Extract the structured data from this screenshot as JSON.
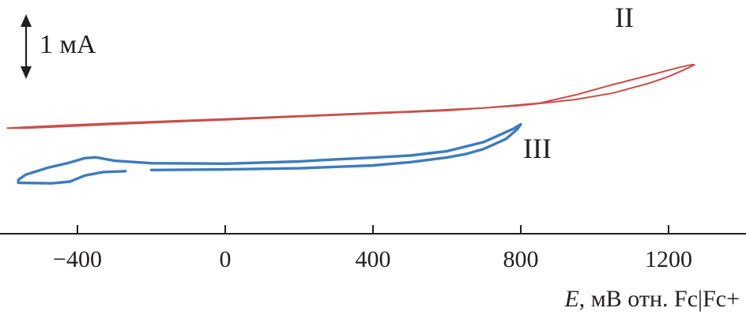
{
  "chart_data": {
    "type": "line",
    "xlabel_symbol": "E",
    "xlabel_rest": ", мВ отн. Fc|Fc+",
    "xlim": [
      -620,
      1400
    ],
    "x_ticks": [
      {
        "value": -400,
        "label": "−400"
      },
      {
        "value": 0,
        "label": "0"
      },
      {
        "value": 400,
        "label": "400"
      },
      {
        "value": 800,
        "label": "800"
      },
      {
        "value": 1200,
        "label": "1200"
      }
    ],
    "scale_bar_label": "1 мА",
    "grid": false,
    "series": [
      {
        "name": "II",
        "color": "#c8504b",
        "closed": true,
        "points": [
          [
            -590,
            6.08
          ],
          [
            -500,
            6.18
          ],
          [
            -300,
            6.37
          ],
          [
            0,
            6.61
          ],
          [
            300,
            6.87
          ],
          [
            500,
            7.04
          ],
          [
            700,
            7.24
          ],
          [
            850,
            7.52
          ],
          [
            950,
            8.0
          ],
          [
            1050,
            8.59
          ],
          [
            1150,
            9.13
          ],
          [
            1230,
            9.58
          ],
          [
            1265,
            9.74
          ],
          [
            1270,
            9.72
          ],
          [
            1240,
            9.42
          ],
          [
            1200,
            9.05
          ],
          [
            1150,
            8.68
          ],
          [
            1050,
            8.1
          ],
          [
            950,
            7.73
          ],
          [
            800,
            7.38
          ],
          [
            600,
            7.09
          ],
          [
            300,
            6.83
          ],
          [
            0,
            6.56
          ],
          [
            -300,
            6.3
          ],
          [
            -480,
            6.13
          ],
          [
            -540,
            6.08
          ]
        ]
      },
      {
        "name": "III",
        "color": "#3f7bbf",
        "closed": false,
        "points": [
          [
            -270,
            3.6
          ],
          [
            -330,
            3.55
          ],
          [
            -380,
            3.35
          ],
          [
            -420,
            3.0
          ],
          [
            -470,
            2.9
          ],
          [
            -560,
            2.93
          ],
          [
            -560,
            3.1
          ],
          [
            -540,
            3.4
          ],
          [
            -480,
            3.8
          ],
          [
            -420,
            4.1
          ],
          [
            -380,
            4.35
          ],
          [
            -350,
            4.4
          ],
          [
            -300,
            4.2
          ],
          [
            -200,
            4.06
          ],
          [
            0,
            4.03
          ],
          [
            200,
            4.16
          ],
          [
            300,
            4.28
          ],
          [
            400,
            4.38
          ],
          [
            500,
            4.5
          ],
          [
            600,
            4.75
          ],
          [
            700,
            5.28
          ],
          [
            780,
            6.04
          ],
          [
            800,
            6.3
          ],
          [
            790,
            6.0
          ],
          [
            760,
            5.46
          ],
          [
            700,
            4.88
          ],
          [
            650,
            4.58
          ],
          [
            600,
            4.39
          ],
          [
            500,
            4.12
          ],
          [
            400,
            3.93
          ],
          [
            300,
            3.85
          ],
          [
            200,
            3.77
          ],
          [
            0,
            3.7
          ],
          [
            -200,
            3.67
          ]
        ]
      }
    ]
  }
}
